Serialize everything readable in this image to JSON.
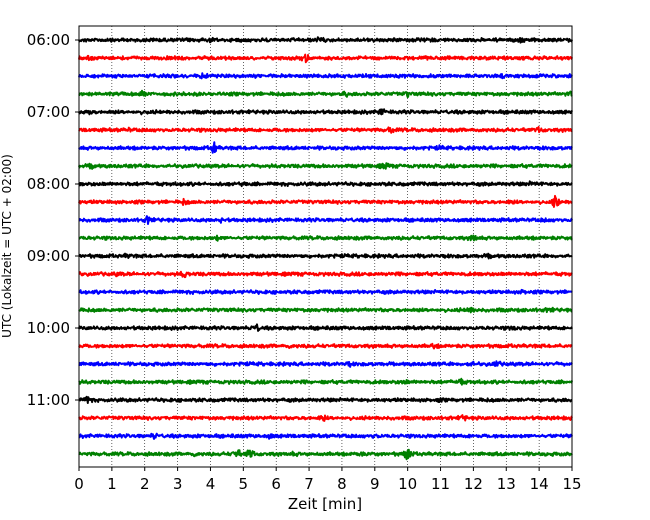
{
  "chart_data": {
    "type": "line",
    "title": "",
    "xlabel": "Zeit  [min]",
    "ylabel": "UTC (Lokalzeit = UTC + 02:00)",
    "xlim": [
      0,
      15
    ],
    "x_ticks": [
      "0",
      "1",
      "2",
      "3",
      "4",
      "5",
      "6",
      "7",
      "8",
      "9",
      "10",
      "11",
      "12",
      "13",
      "14",
      "15"
    ],
    "y_ticks": [
      "06:00",
      "07:00",
      "08:00",
      "09:00",
      "10:00",
      "11:00"
    ],
    "grid": "vertical-dotted",
    "colors": [
      "#000000",
      "#ff0000",
      "#0000ff",
      "#008000"
    ],
    "traces": [
      {
        "start": "06:00",
        "color": "#000000",
        "events": [
          [
            4.0,
            0.5
          ],
          [
            7.3,
            0.4
          ],
          [
            13.4,
            0.5
          ]
        ]
      },
      {
        "start": "06:15",
        "color": "#ff0000",
        "events": [
          [
            0.3,
            0.5
          ],
          [
            6.9,
            1.1
          ],
          [
            11.2,
            0.5
          ]
        ]
      },
      {
        "start": "06:30",
        "color": "#0000ff",
        "events": [
          [
            3.8,
            0.5
          ],
          [
            12.9,
            0.3
          ]
        ]
      },
      {
        "start": "06:45",
        "color": "#008000",
        "events": [
          [
            1.9,
            0.6
          ],
          [
            8.1,
            0.5
          ],
          [
            10.0,
            0.6
          ],
          [
            14.9,
            0.5
          ]
        ]
      },
      {
        "start": "07:00",
        "color": "#000000",
        "events": [
          [
            0.3,
            0.6
          ],
          [
            9.2,
            0.9
          ],
          [
            2.0,
            0.3
          ]
        ]
      },
      {
        "start": "07:15",
        "color": "#ff0000",
        "events": [
          [
            1.5,
            0.3
          ],
          [
            9.5,
            0.6
          ],
          [
            14.0,
            0.5
          ]
        ]
      },
      {
        "start": "07:30",
        "color": "#0000ff",
        "events": [
          [
            4.1,
            1.5
          ],
          [
            11.0,
            0.3
          ]
        ]
      },
      {
        "start": "07:45",
        "color": "#008000",
        "events": [
          [
            0.4,
            0.7
          ],
          [
            9.3,
            0.9
          ]
        ]
      },
      {
        "start": "08:00",
        "color": "#000000",
        "events": [
          [
            5.0,
            0.3
          ],
          [
            13.8,
            0.5
          ]
        ]
      },
      {
        "start": "08:15",
        "color": "#ff0000",
        "events": [
          [
            3.2,
            0.7
          ],
          [
            14.5,
            1.5
          ],
          [
            13.1,
            0.4
          ]
        ]
      },
      {
        "start": "08:30",
        "color": "#0000ff",
        "events": [
          [
            2.1,
            0.9
          ],
          [
            4.3,
            0.6
          ],
          [
            14.2,
            0.3
          ]
        ]
      },
      {
        "start": "08:45",
        "color": "#008000",
        "events": [
          [
            12.0,
            0.8
          ],
          [
            4.2,
            0.4
          ]
        ]
      },
      {
        "start": "09:00",
        "color": "#000000",
        "events": [
          [
            1.5,
            0.5
          ],
          [
            12.5,
            0.5
          ]
        ]
      },
      {
        "start": "09:15",
        "color": "#ff0000",
        "events": [
          [
            3.2,
            0.9
          ],
          [
            1.2,
            0.3
          ]
        ]
      },
      {
        "start": "09:30",
        "color": "#0000ff",
        "events": [
          [
            13.5,
            0.3
          ]
        ]
      },
      {
        "start": "09:45",
        "color": "#008000",
        "events": [
          [
            11.9,
            0.6
          ],
          [
            14.3,
            0.4
          ]
        ]
      },
      {
        "start": "10:00",
        "color": "#000000",
        "events": [
          [
            5.4,
            1.0
          ],
          [
            13.2,
            0.3
          ]
        ]
      },
      {
        "start": "10:15",
        "color": "#ff0000",
        "events": [
          [
            6.4,
            0.3
          ],
          [
            10.8,
            0.5
          ]
        ]
      },
      {
        "start": "10:30",
        "color": "#0000ff",
        "events": [
          [
            11.9,
            0.8
          ],
          [
            12.7,
            0.6
          ],
          [
            8.2,
            0.4
          ]
        ]
      },
      {
        "start": "10:45",
        "color": "#008000",
        "events": [
          [
            11.6,
            0.8
          ],
          [
            9.9,
            0.4
          ]
        ]
      },
      {
        "start": "11:00",
        "color": "#000000",
        "events": [
          [
            0.25,
            1.0
          ],
          [
            10.9,
            0.4
          ]
        ]
      },
      {
        "start": "11:15",
        "color": "#ff0000",
        "events": [
          [
            7.4,
            0.8
          ],
          [
            11.7,
            0.7
          ]
        ]
      },
      {
        "start": "11:30",
        "color": "#0000ff",
        "events": [
          [
            2.3,
            0.5
          ],
          [
            5.8,
            0.6
          ],
          [
            9.0,
            0.5
          ],
          [
            12.0,
            0.3
          ]
        ]
      },
      {
        "start": "11:45",
        "color": "#008000",
        "events": [
          [
            4.8,
            1.6
          ],
          [
            5.2,
            1.2
          ],
          [
            8.5,
            0.7
          ],
          [
            10.0,
            1.6
          ],
          [
            6.5,
            0.5
          ],
          [
            3.5,
            0.4
          ]
        ]
      }
    ]
  }
}
